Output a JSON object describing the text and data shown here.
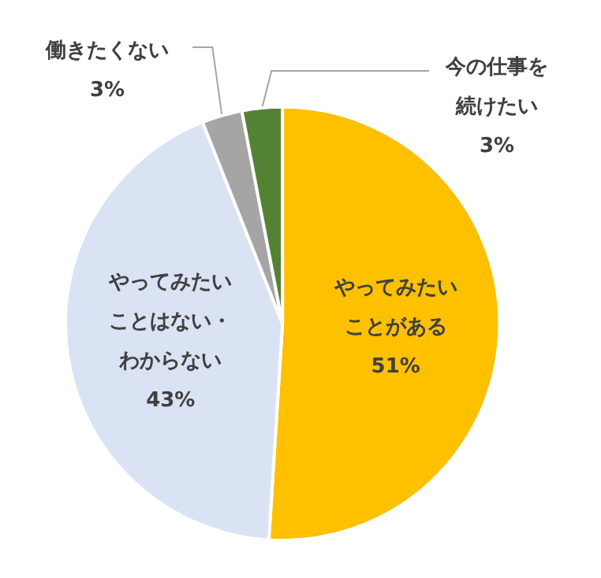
{
  "chart_data": {
    "type": "pie",
    "categories": [
      "やってみたいことがある",
      "やってみたいことはない・わからない",
      "働きたくない",
      "今の仕事を続けたい"
    ],
    "values": [
      51,
      43,
      3,
      3
    ],
    "colors": [
      "#ffc000",
      "#dae3f3",
      "#a5a5a5",
      "#548235"
    ],
    "value_labels": [
      "51%",
      "43%",
      "3%",
      "3%"
    ]
  }
}
